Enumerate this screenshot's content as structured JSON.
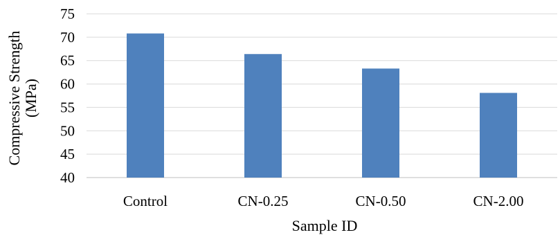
{
  "chart_data": {
    "type": "bar",
    "categories": [
      "Control",
      "CN-0.25",
      "CN-0.50",
      "CN-2.00"
    ],
    "values": [
      70.8,
      66.4,
      63.3,
      58.1
    ],
    "title": "",
    "xlabel": "Sample ID",
    "ylabel_lines": [
      "Compressive Strength",
      "(MPa)"
    ],
    "ylim": [
      40,
      75
    ],
    "yticks": [
      40,
      45,
      50,
      55,
      60,
      65,
      70,
      75
    ],
    "grid": true,
    "legend": "none",
    "bar_color": "#4f81bd",
    "grid_color": "#d9d9d9"
  }
}
